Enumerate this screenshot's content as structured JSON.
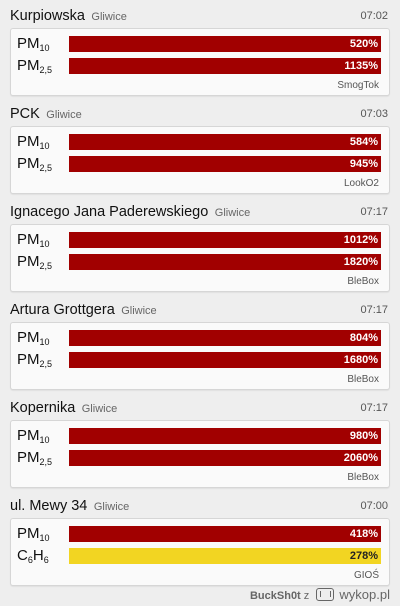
{
  "stations": [
    {
      "name": "Kurpiowska",
      "city": "Gliwice",
      "time": "07:02",
      "provider": "SmogTok",
      "rows": [
        {
          "param": "PM",
          "sub": "10",
          "value": "520%",
          "level": "very-bad"
        },
        {
          "param": "PM",
          "sub": "2,5",
          "value": "1135%",
          "level": "very-bad"
        }
      ]
    },
    {
      "name": "PCK",
      "city": "Gliwice",
      "time": "07:03",
      "provider": "LookO2",
      "rows": [
        {
          "param": "PM",
          "sub": "10",
          "value": "584%",
          "level": "very-bad"
        },
        {
          "param": "PM",
          "sub": "2,5",
          "value": "945%",
          "level": "very-bad"
        }
      ]
    },
    {
      "name": "Ignacego Jana Paderewskiego",
      "city": "Gliwice",
      "time": "07:17",
      "provider": "BleBox",
      "rows": [
        {
          "param": "PM",
          "sub": "10",
          "value": "1012%",
          "level": "very-bad"
        },
        {
          "param": "PM",
          "sub": "2,5",
          "value": "1820%",
          "level": "very-bad"
        }
      ]
    },
    {
      "name": "Artura Grottgera",
      "city": "Gliwice",
      "time": "07:17",
      "provider": "BleBox",
      "rows": [
        {
          "param": "PM",
          "sub": "10",
          "value": "804%",
          "level": "very-bad"
        },
        {
          "param": "PM",
          "sub": "2,5",
          "value": "1680%",
          "level": "very-bad"
        }
      ]
    },
    {
      "name": "Kopernika",
      "city": "Gliwice",
      "time": "07:17",
      "provider": "BleBox",
      "rows": [
        {
          "param": "PM",
          "sub": "10",
          "value": "980%",
          "level": "very-bad"
        },
        {
          "param": "PM",
          "sub": "2,5",
          "value": "2060%",
          "level": "very-bad"
        }
      ]
    },
    {
      "name": "ul. Mewy 34",
      "city": "Gliwice",
      "time": "07:00",
      "provider": "GIOŚ",
      "rows": [
        {
          "param": "PM",
          "sub": "10",
          "value": "418%",
          "level": "very-bad"
        },
        {
          "param": "C",
          "sub": "6",
          "param2": "H",
          "sub2": "6",
          "value": "278%",
          "level": "moderate"
        }
      ]
    }
  ],
  "colors": {
    "very-bad": "#a10000",
    "moderate": "#f2d522"
  },
  "footer": {
    "user": "BuckSh0t",
    "z": "z",
    "site": "wykop.pl",
    "logo_icon": "wykop-logo-icon"
  }
}
